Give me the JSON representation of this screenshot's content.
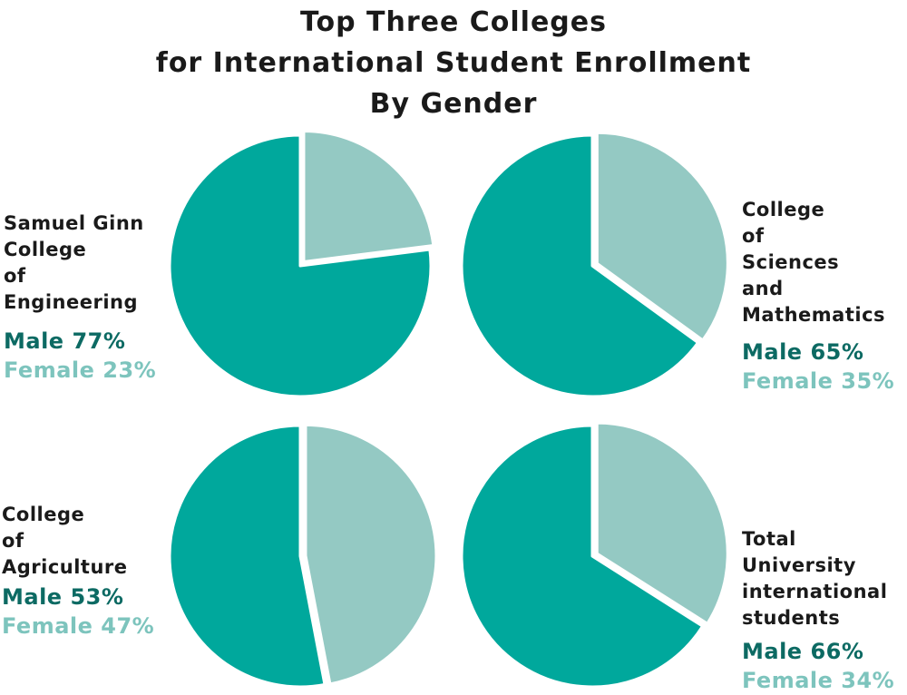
{
  "title_lines": [
    "Top Three Colleges",
    "for International Student Enrollment",
    "By Gender"
  ],
  "colors": {
    "male": "#00a89c",
    "female": "#94c9c3",
    "male_text": "#0c6a63",
    "female_text": "#7dc4bd"
  },
  "chart_data": [
    {
      "type": "pie",
      "name_lines": [
        "Samuel Ginn",
        "College",
        "of",
        "Engineering"
      ],
      "slices": [
        {
          "label": "Male",
          "value": 77
        },
        {
          "label": "Female",
          "value": 23
        }
      ],
      "male_text": "Male 77%",
      "female_text": "Female 23%",
      "legend": "left"
    },
    {
      "type": "pie",
      "name_lines": [
        "College",
        "of",
        "Sciences",
        "and",
        "Mathematics"
      ],
      "slices": [
        {
          "label": "Male",
          "value": 65
        },
        {
          "label": "Female",
          "value": 35
        }
      ],
      "male_text": "Male 65%",
      "female_text": "Female 35%",
      "legend": "right"
    },
    {
      "type": "pie",
      "name_lines": [
        "College",
        "of",
        "Agriculture"
      ],
      "slices": [
        {
          "label": "Male",
          "value": 53
        },
        {
          "label": "Female",
          "value": 47
        }
      ],
      "male_text": "Male 53%",
      "female_text": "Female 47%",
      "legend": "left"
    },
    {
      "type": "pie",
      "name_lines": [
        "Total",
        "University",
        "international",
        "students"
      ],
      "slices": [
        {
          "label": "Male",
          "value": 66
        },
        {
          "label": "Female",
          "value": 34
        }
      ],
      "male_text": "Male 66%",
      "female_text": "Female 34%",
      "legend": "right"
    }
  ]
}
